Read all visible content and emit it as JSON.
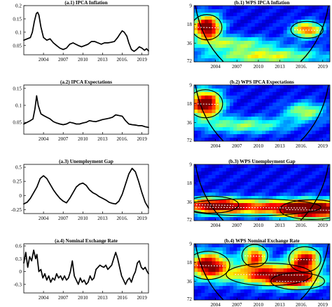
{
  "chart_data": [
    {
      "type": "line",
      "title": "(a.1) IPCA Inflation",
      "xlim": [
        2001,
        2020
      ],
      "ylim": [
        0.015,
        0.2
      ],
      "xticks": [
        2004,
        2007,
        2010,
        2013,
        2016,
        2019
      ],
      "xticklabels": [
        "2004",
        "2007",
        "2010",
        "2013",
        "2016.",
        "2019"
      ],
      "yticks": [
        0.05,
        0.1,
        0.15,
        0.2
      ],
      "yticklabels": [
        "0.05",
        "0.1",
        "0.15",
        "0.2"
      ],
      "x": [
        2001.0,
        2001.5,
        2002.0,
        2002.3,
        2002.6,
        2002.9,
        2003.1,
        2003.3,
        2003.6,
        2004.0,
        2004.5,
        2005.0,
        2005.5,
        2006.0,
        2006.5,
        2007.0,
        2007.5,
        2008.0,
        2008.5,
        2008.9,
        2009.3,
        2009.8,
        2010.3,
        2010.8,
        2011.3,
        2011.8,
        2012.3,
        2012.8,
        2013.3,
        2013.8,
        2014.3,
        2014.8,
        2015.3,
        2015.7,
        2016.0,
        2016.3,
        2016.7,
        2017.0,
        2017.4,
        2017.8,
        2018.2,
        2018.6,
        2019.0,
        2019.4,
        2019.7,
        2020.0
      ],
      "y": [
        0.07,
        0.075,
        0.08,
        0.1,
        0.14,
        0.17,
        0.175,
        0.165,
        0.12,
        0.08,
        0.07,
        0.075,
        0.06,
        0.05,
        0.04,
        0.035,
        0.04,
        0.055,
        0.06,
        0.055,
        0.05,
        0.045,
        0.05,
        0.055,
        0.065,
        0.065,
        0.06,
        0.055,
        0.06,
        0.06,
        0.062,
        0.065,
        0.08,
        0.095,
        0.105,
        0.1,
        0.085,
        0.06,
        0.035,
        0.028,
        0.035,
        0.045,
        0.04,
        0.032,
        0.038,
        0.03
      ]
    },
    {
      "type": "line",
      "title": "(a.2) IPCA Expectations",
      "xlim": [
        2001,
        2020
      ],
      "ylim": [
        0.015,
        0.16
      ],
      "xticks": [
        2004,
        2007,
        2010,
        2013,
        2016,
        2019
      ],
      "xticklabels": [
        "2004",
        "2007",
        "2010",
        "2013",
        "2016.",
        "2019"
      ],
      "yticks": [
        0.05,
        0.1,
        0.15
      ],
      "yticklabels": [
        "0.05",
        "0.1",
        "0.15"
      ],
      "x": [
        2001.0,
        2001.5,
        2002.0,
        2002.4,
        2002.7,
        2002.95,
        2003.2,
        2003.6,
        2004.0,
        2004.5,
        2005.0,
        2005.5,
        2006.0,
        2006.5,
        2007.0,
        2007.5,
        2008.0,
        2008.5,
        2009.0,
        2009.5,
        2010.0,
        2010.5,
        2011.0,
        2011.5,
        2012.0,
        2012.5,
        2013.0,
        2013.5,
        2014.0,
        2014.5,
        2015.0,
        2015.5,
        2016.0,
        2016.5,
        2017.0,
        2017.5,
        2018.0,
        2018.5,
        2019.0,
        2019.5,
        2020.0
      ],
      "y": [
        0.045,
        0.05,
        0.055,
        0.06,
        0.09,
        0.128,
        0.1,
        0.075,
        0.07,
        0.065,
        0.06,
        0.052,
        0.048,
        0.045,
        0.043,
        0.045,
        0.05,
        0.048,
        0.045,
        0.045,
        0.048,
        0.05,
        0.055,
        0.053,
        0.052,
        0.055,
        0.058,
        0.06,
        0.062,
        0.065,
        0.072,
        0.07,
        0.068,
        0.055,
        0.045,
        0.043,
        0.042,
        0.04,
        0.04,
        0.037,
        0.035
      ]
    },
    {
      "type": "line",
      "title": "(a.3) Unemployment Gap",
      "xlim": [
        2001,
        2020
      ],
      "ylim": [
        -0.32,
        0.55
      ],
      "xticks": [
        2004,
        2007,
        2010,
        2013,
        2016,
        2019
      ],
      "xticklabels": [
        "2004",
        "2007",
        "2010",
        "2013",
        "2016.",
        "2019"
      ],
      "yticks": [
        -0.25,
        0,
        0.25,
        0.5
      ],
      "yticklabels": [
        "-0.25",
        "0",
        "0.25",
        "0.5"
      ],
      "x": [
        2001.0,
        2001.5,
        2002.0,
        2002.5,
        2003.0,
        2003.5,
        2004.0,
        2004.5,
        2005.0,
        2005.5,
        2006.0,
        2006.5,
        2007.0,
        2007.5,
        2008.0,
        2008.5,
        2009.0,
        2009.5,
        2010.0,
        2010.5,
        2011.0,
        2011.5,
        2012.0,
        2012.5,
        2013.0,
        2013.5,
        2014.0,
        2014.5,
        2015.0,
        2015.5,
        2016.0,
        2016.5,
        2017.0,
        2017.5,
        2018.0,
        2018.5,
        2019.0,
        2019.5,
        2020.0
      ],
      "y": [
        -0.15,
        -0.12,
        -0.05,
        0.05,
        0.15,
        0.3,
        0.35,
        0.3,
        0.2,
        0.1,
        0.02,
        -0.05,
        -0.1,
        -0.13,
        -0.05,
        0.05,
        0.15,
        0.2,
        0.22,
        0.18,
        0.1,
        0.05,
        0.02,
        -0.02,
        -0.05,
        -0.08,
        -0.12,
        -0.14,
        -0.15,
        -0.1,
        0.02,
        0.2,
        0.38,
        0.48,
        0.42,
        0.25,
        0.05,
        -0.12,
        -0.22
      ]
    },
    {
      "type": "line",
      "title": "(a.4) Nominal Exchange Rate",
      "xlim": [
        2001,
        2020
      ],
      "ylim": [
        -0.5,
        0.65
      ],
      "xticks": [
        2004,
        2007,
        2010,
        2013,
        2016,
        2019
      ],
      "xticklabels": [
        "2004",
        "2007",
        "2010",
        "2013",
        "2016",
        "2019"
      ],
      "yticks": [
        -0.3,
        0,
        0.3,
        0.6
      ],
      "yticklabels": [
        "-0.3",
        "0",
        "0.3",
        "0.6"
      ],
      "x": [
        2001.0,
        2001.3,
        2001.6,
        2001.9,
        2002.2,
        2002.5,
        2002.8,
        2003.0,
        2003.3,
        2003.6,
        2003.9,
        2004.2,
        2004.5,
        2004.8,
        2005.1,
        2005.4,
        2005.7,
        2006.0,
        2006.3,
        2006.6,
        2006.9,
        2007.2,
        2007.5,
        2007.8,
        2008.1,
        2008.4,
        2008.7,
        2009.0,
        2009.3,
        2009.6,
        2009.9,
        2010.2,
        2010.5,
        2010.8,
        2011.1,
        2011.4,
        2011.7,
        2012.0,
        2012.3,
        2012.6,
        2012.9,
        2013.2,
        2013.5,
        2013.8,
        2014.1,
        2014.4,
        2014.7,
        2015.0,
        2015.3,
        2015.6,
        2015.9,
        2016.2,
        2016.5,
        2016.8,
        2017.1,
        2017.4,
        2017.7,
        2018.0,
        2018.3,
        2018.6,
        2018.9,
        2019.2,
        2019.5,
        2019.8,
        2020.0
      ],
      "y": [
        0.2,
        0.45,
        0.1,
        0.35,
        0.25,
        0.5,
        0.3,
        0.4,
        0.0,
        0.05,
        -0.15,
        -0.05,
        -0.2,
        -0.1,
        -0.25,
        -0.15,
        -0.2,
        -0.05,
        -0.15,
        -0.1,
        -0.2,
        -0.1,
        -0.2,
        -0.15,
        0.0,
        0.25,
        -0.1,
        -0.2,
        -0.3,
        -0.15,
        -0.25,
        -0.2,
        -0.3,
        -0.25,
        -0.1,
        -0.2,
        -0.15,
        0.05,
        0.1,
        0.15,
        0.12,
        0.1,
        0.15,
        0.05,
        0.1,
        0.15,
        0.3,
        0.45,
        0.3,
        0.1,
        -0.1,
        -0.2,
        -0.3,
        -0.2,
        -0.15,
        -0.25,
        -0.1,
        0.0,
        0.2,
        0.25,
        0.1,
        0.05,
        0.1,
        0.0,
        -0.05
      ]
    },
    {
      "type": "heatmap",
      "title": "(b.1) WPS IPCA Inflation",
      "xlim": [
        2001,
        2020
      ],
      "ylim": [
        9,
        72
      ],
      "xticks": [
        2004,
        2007,
        2010,
        2013,
        2016,
        2019
      ],
      "xticklabels": [
        "2004",
        "2007",
        "2010",
        "2013",
        "2016.",
        "2019"
      ],
      "yticks": [
        9,
        18,
        36,
        72
      ],
      "yticklabels": [
        "9",
        "18",
        "36",
        "72"
      ],
      "blobs": [
        {
          "x": 2002.8,
          "period": 20,
          "sx": 1.4,
          "sy": 0.45,
          "v": 1.0
        },
        {
          "x": 2006.5,
          "period": 36,
          "sx": 4.0,
          "sy": 0.25,
          "v": 0.4
        },
        {
          "x": 2016.8,
          "period": 22,
          "sx": 1.5,
          "sy": 0.3,
          "v": 0.7
        },
        {
          "x": 2011.0,
          "period": 58,
          "sx": 6.0,
          "sy": 0.3,
          "v": 0.5
        }
      ]
    },
    {
      "type": "heatmap",
      "title": "(b.2) WPS IPCA Expectations",
      "xlim": [
        2001,
        2020
      ],
      "ylim": [
        9,
        72
      ],
      "xticks": [
        2004,
        2007,
        2010,
        2013,
        2016,
        2019
      ],
      "xticklabels": [
        "2004",
        "2007",
        "2010",
        "2013",
        "2016.",
        "2019"
      ],
      "yticks": [
        9,
        18,
        36,
        72
      ],
      "yticklabels": [
        "9",
        "18",
        "36",
        "72"
      ],
      "blobs": [
        {
          "x": 2002.6,
          "period": 18,
          "sx": 1.6,
          "sy": 0.5,
          "v": 1.0
        },
        {
          "x": 2008.0,
          "period": 40,
          "sx": 4.5,
          "sy": 0.3,
          "v": 0.4
        },
        {
          "x": 2016.5,
          "period": 24,
          "sx": 2.0,
          "sy": 0.35,
          "v": 0.45
        }
      ]
    },
    {
      "type": "heatmap",
      "title": "(b.3) WPS Unemployment Gap",
      "xlim": [
        2001,
        2020
      ],
      "ylim": [
        9,
        72
      ],
      "xticks": [
        2004,
        2007,
        2010,
        2013,
        2016,
        2019
      ],
      "xticklabels": [
        "2004",
        "2007",
        "2010",
        "2013",
        "2016.",
        "2019"
      ],
      "yticks": [
        9,
        18,
        36,
        72
      ],
      "yticklabels": [
        "9",
        "18",
        "36",
        "72"
      ],
      "blobs": [
        {
          "x": 2017.5,
          "period": 48,
          "sx": 3.0,
          "sy": 0.35,
          "v": 1.0
        },
        {
          "x": 2009.0,
          "period": 44,
          "sx": 6.5,
          "sy": 0.3,
          "v": 0.7
        },
        {
          "x": 2003.5,
          "period": 40,
          "sx": 2.5,
          "sy": 0.3,
          "v": 0.55
        }
      ]
    },
    {
      "type": "heatmap",
      "title": "(b.4) WPS Nominal Exchange Rate",
      "xlim": [
        2001,
        2020
      ],
      "ylim": [
        9,
        72
      ],
      "xticks": [
        2004,
        2007,
        2010,
        2013,
        2016,
        2019
      ],
      "xticklabels": [
        "2004",
        "2007",
        "2010",
        "2013",
        "2016.",
        "2019"
      ],
      "yticks": [
        9,
        18,
        36,
        72
      ],
      "yticklabels": [
        "9",
        "18",
        "36",
        "72"
      ],
      "blobs": [
        {
          "x": 2003.0,
          "period": 20,
          "sx": 2.0,
          "sy": 0.5,
          "v": 0.9
        },
        {
          "x": 2009.5,
          "period": 14,
          "sx": 1.2,
          "sy": 0.4,
          "v": 0.7
        },
        {
          "x": 2011.5,
          "period": 28,
          "sx": 4.0,
          "sy": 0.4,
          "v": 0.8
        },
        {
          "x": 2016.5,
          "period": 16,
          "sx": 1.5,
          "sy": 0.45,
          "v": 0.85
        },
        {
          "x": 2015.5,
          "period": 36,
          "sx": 2.5,
          "sy": 0.3,
          "v": 0.6
        }
      ]
    }
  ]
}
